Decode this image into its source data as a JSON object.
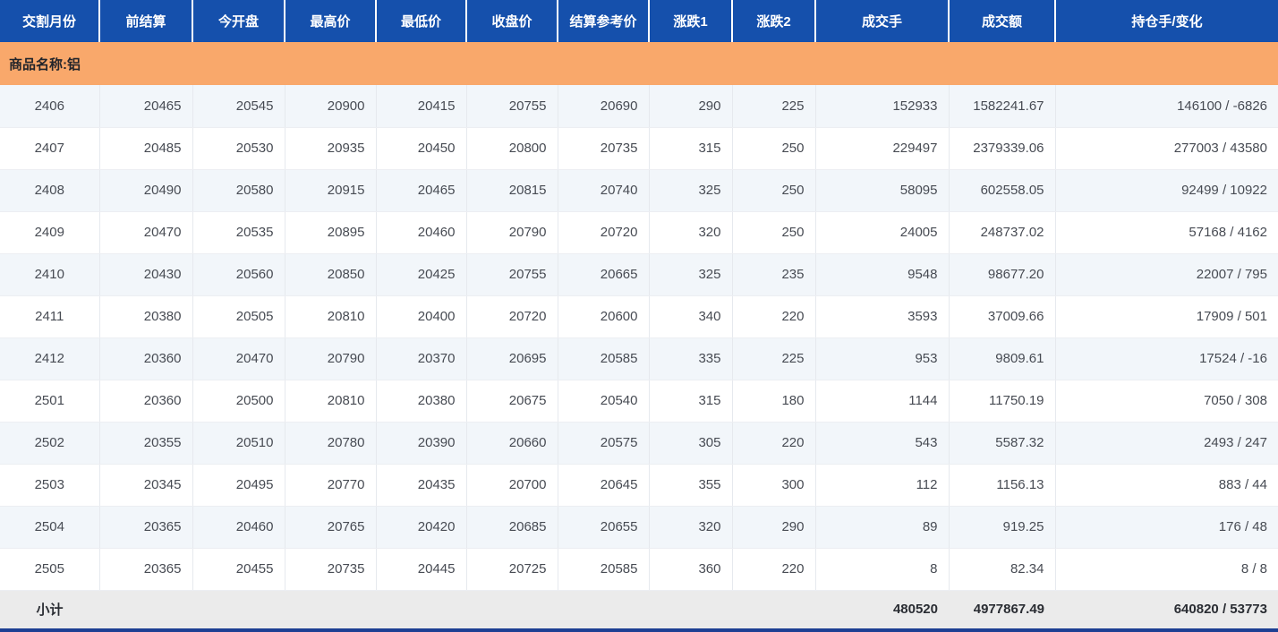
{
  "colors": {
    "header_bg": "#1550ac",
    "group_bg": "#f9a86b",
    "stripe_bg": "#f2f6fa",
    "subtotal_bg": "#ebebeb",
    "bottombar_bg": "#1d3f93"
  },
  "table": {
    "columns": [
      {
        "label": "交割月份"
      },
      {
        "label": "前结算"
      },
      {
        "label": "今开盘"
      },
      {
        "label": "最高价"
      },
      {
        "label": "最低价"
      },
      {
        "label": "收盘价"
      },
      {
        "label": "结算参考价"
      },
      {
        "label": "涨跌1"
      },
      {
        "label": "涨跌2"
      },
      {
        "label": "成交手"
      },
      {
        "label": "成交额"
      },
      {
        "label": "持仓手/变化"
      }
    ],
    "group_row": {
      "label": "商品名称:铝"
    },
    "rows": [
      {
        "cells": [
          "2406",
          "20465",
          "20545",
          "20900",
          "20415",
          "20755",
          "20690",
          "290",
          "225",
          "152933",
          "1582241.67",
          "146100 / -6826"
        ]
      },
      {
        "cells": [
          "2407",
          "20485",
          "20530",
          "20935",
          "20450",
          "20800",
          "20735",
          "315",
          "250",
          "229497",
          "2379339.06",
          "277003 / 43580"
        ]
      },
      {
        "cells": [
          "2408",
          "20490",
          "20580",
          "20915",
          "20465",
          "20815",
          "20740",
          "325",
          "250",
          "58095",
          "602558.05",
          "92499 / 10922"
        ]
      },
      {
        "cells": [
          "2409",
          "20470",
          "20535",
          "20895",
          "20460",
          "20790",
          "20720",
          "320",
          "250",
          "24005",
          "248737.02",
          "57168 / 4162"
        ]
      },
      {
        "cells": [
          "2410",
          "20430",
          "20560",
          "20850",
          "20425",
          "20755",
          "20665",
          "325",
          "235",
          "9548",
          "98677.20",
          "22007 / 795"
        ]
      },
      {
        "cells": [
          "2411",
          "20380",
          "20505",
          "20810",
          "20400",
          "20720",
          "20600",
          "340",
          "220",
          "3593",
          "37009.66",
          "17909 / 501"
        ]
      },
      {
        "cells": [
          "2412",
          "20360",
          "20470",
          "20790",
          "20370",
          "20695",
          "20585",
          "335",
          "225",
          "953",
          "9809.61",
          "17524 / -16"
        ]
      },
      {
        "cells": [
          "2501",
          "20360",
          "20500",
          "20810",
          "20380",
          "20675",
          "20540",
          "315",
          "180",
          "1144",
          "11750.19",
          "7050 / 308"
        ]
      },
      {
        "cells": [
          "2502",
          "20355",
          "20510",
          "20780",
          "20390",
          "20660",
          "20575",
          "305",
          "220",
          "543",
          "5587.32",
          "2493 / 247"
        ]
      },
      {
        "cells": [
          "2503",
          "20345",
          "20495",
          "20770",
          "20435",
          "20700",
          "20645",
          "355",
          "300",
          "112",
          "1156.13",
          "883 / 44"
        ]
      },
      {
        "cells": [
          "2504",
          "20365",
          "20460",
          "20765",
          "20420",
          "20685",
          "20655",
          "320",
          "290",
          "89",
          "919.25",
          "176 / 48"
        ]
      },
      {
        "cells": [
          "2505",
          "20365",
          "20455",
          "20735",
          "20445",
          "20725",
          "20585",
          "360",
          "220",
          "8",
          "82.34",
          "8 / 8"
        ]
      }
    ],
    "subtotal": {
      "cells": [
        "小计",
        "",
        "",
        "",
        "",
        "",
        "",
        "",
        "",
        "480520",
        "4977867.49",
        "640820 / 53773"
      ]
    }
  }
}
